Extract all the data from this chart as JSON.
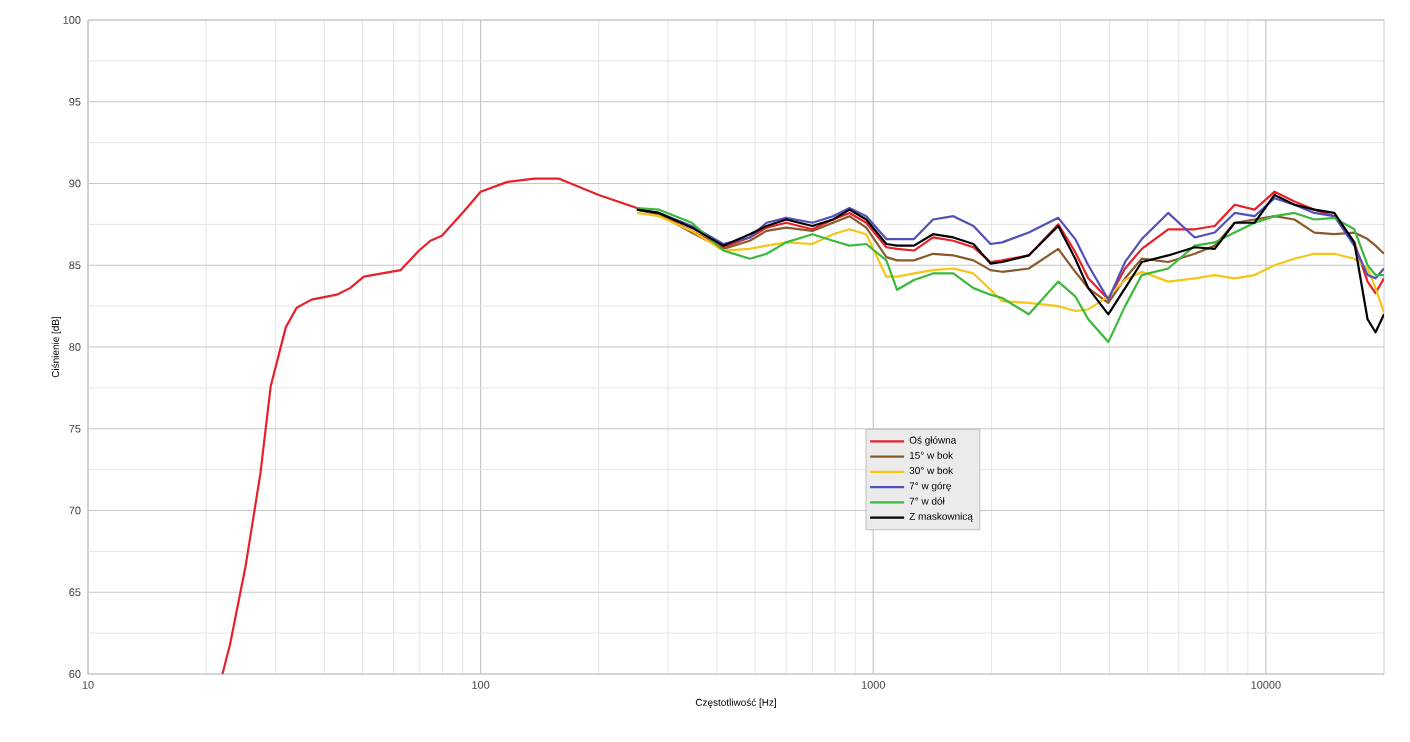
{
  "chart_data": {
    "type": "line",
    "xlabel": "Częstotliwość [Hz]",
    "ylabel": "Ciśnienie [dB]",
    "log": "x",
    "grid": true,
    "legend": "bottom",
    "xlim": [
      10,
      20000
    ],
    "xticks": [
      10,
      100,
      1000,
      10000
    ],
    "ylim": [
      60,
      100
    ],
    "yticks": [
      60,
      65,
      70,
      75,
      80,
      85,
      90,
      95,
      100
    ],
    "series": [
      {
        "name": "Oś główna",
        "color": "#e8202a",
        "x": [
          22,
          23,
          25.2,
          27.5,
          29.2,
          31.9,
          34,
          37.1,
          43,
          46.5,
          50.4,
          62.5,
          69.7,
          74.5,
          79.7,
          90.7,
          100,
          117,
          137,
          158,
          200,
          250,
          285,
          345,
          415,
          485,
          535,
          600,
          700,
          790,
          870,
          960,
          1080,
          1150,
          1270,
          1420,
          1600,
          1800,
          1990,
          2130,
          2490,
          2960,
          3270,
          3530,
          3970,
          4380,
          4830,
          5640,
          6590,
          7410,
          8330,
          9360,
          10520,
          11830,
          13290,
          14940,
          16800,
          18160,
          19030,
          20000
        ],
        "values": [
          60,
          61.8,
          66.6,
          72.3,
          77.6,
          81.2,
          82.4,
          82.9,
          83.2,
          83.6,
          84.3,
          84.7,
          85.9,
          86.5,
          86.8,
          88.3,
          89.5,
          90.1,
          90.3,
          90.3,
          89.3,
          88.5,
          88.1,
          87.1,
          86.1,
          86.7,
          87.3,
          87.6,
          87.2,
          87.8,
          88.2,
          87.6,
          86.1,
          86.0,
          85.9,
          86.7,
          86.5,
          86.1,
          85.2,
          85.3,
          85.6,
          87.5,
          85.8,
          84.2,
          82.9,
          84.8,
          86.0,
          87.2,
          87.2,
          87.4,
          88.7,
          88.4,
          89.5,
          88.9,
          88.4,
          88.0,
          86.4,
          84.0,
          83.3,
          84.2
        ]
      },
      {
        "name": "15° w bok",
        "color": "#8b5a2b",
        "x": [
          250,
          285,
          345,
          415,
          485,
          535,
          600,
          700,
          790,
          870,
          960,
          1080,
          1150,
          1270,
          1420,
          1600,
          1800,
          1990,
          2130,
          2490,
          2960,
          3270,
          3530,
          3970,
          4380,
          4830,
          5640,
          6590,
          7410,
          8330,
          9360,
          10520,
          11830,
          13290,
          14940,
          16800,
          18160,
          19030,
          20000
        ],
        "values": [
          88.4,
          88.1,
          87.0,
          86.0,
          86.5,
          87.1,
          87.3,
          87.1,
          87.6,
          88.0,
          87.3,
          85.5,
          85.3,
          85.3,
          85.7,
          85.6,
          85.3,
          84.7,
          84.6,
          84.8,
          86.0,
          84.6,
          83.6,
          82.7,
          84.2,
          85.4,
          85.2,
          85.7,
          86.2,
          87.6,
          87.8,
          88.0,
          87.8,
          87.0,
          86.9,
          87.0,
          86.6,
          86.2,
          85.7
        ]
      },
      {
        "name": "30° w bok",
        "color": "#f5c518",
        "x": [
          250,
          285,
          345,
          415,
          485,
          535,
          600,
          700,
          790,
          870,
          960,
          1080,
          1150,
          1270,
          1420,
          1600,
          1800,
          1990,
          2130,
          2490,
          2960,
          3270,
          3530,
          3970,
          4380,
          4830,
          5640,
          6590,
          7410,
          8330,
          9360,
          10520,
          11830,
          13290,
          14940,
          16800,
          18160,
          19030,
          20000
        ],
        "values": [
          88.2,
          88.0,
          87.1,
          85.9,
          86.0,
          86.2,
          86.4,
          86.3,
          86.9,
          87.2,
          86.9,
          84.3,
          84.3,
          84.5,
          84.7,
          84.8,
          84.5,
          83.5,
          82.8,
          82.7,
          82.5,
          82.2,
          82.3,
          83.1,
          84.1,
          84.6,
          84.0,
          84.2,
          84.4,
          84.2,
          84.4,
          85.0,
          85.4,
          85.7,
          85.7,
          85.4,
          84.8,
          83.6,
          82.1
        ]
      },
      {
        "name": "7° w górę",
        "color": "#5050b8",
        "x": [
          250,
          285,
          345,
          415,
          485,
          535,
          600,
          700,
          790,
          870,
          960,
          1080,
          1150,
          1270,
          1420,
          1600,
          1800,
          1990,
          2130,
          2490,
          2960,
          3270,
          3530,
          3970,
          4380,
          4830,
          5640,
          6590,
          7410,
          8330,
          9360,
          10520,
          11830,
          13290,
          14940,
          16800,
          18160,
          19030,
          20000
        ],
        "values": [
          88.4,
          88.2,
          87.4,
          86.3,
          86.7,
          87.6,
          87.9,
          87.6,
          88.0,
          88.5,
          88.0,
          86.6,
          86.6,
          86.6,
          87.8,
          88.0,
          87.4,
          86.3,
          86.4,
          87.0,
          87.9,
          86.6,
          85.0,
          82.9,
          85.2,
          86.6,
          88.2,
          86.7,
          87.0,
          88.2,
          88.0,
          89.1,
          88.7,
          88.2,
          88.0,
          86.2,
          84.4,
          84.2,
          84.8
        ]
      },
      {
        "name": "7° w dół",
        "color": "#3cb83c",
        "x": [
          250,
          285,
          345,
          415,
          485,
          535,
          600,
          700,
          790,
          870,
          960,
          1080,
          1150,
          1270,
          1420,
          1600,
          1800,
          1990,
          2130,
          2490,
          2960,
          3270,
          3530,
          3970,
          4380,
          4830,
          5640,
          6590,
          7410,
          8330,
          9360,
          10520,
          11830,
          13290,
          14940,
          16800,
          18160,
          19030,
          20000
        ],
        "values": [
          88.5,
          88.4,
          87.6,
          85.9,
          85.4,
          85.7,
          86.4,
          86.9,
          86.5,
          86.2,
          86.3,
          85.3,
          83.5,
          84.1,
          84.5,
          84.5,
          83.6,
          83.2,
          83.0,
          82.0,
          84.0,
          83.1,
          81.7,
          80.3,
          82.5,
          84.4,
          84.8,
          86.2,
          86.4,
          87.0,
          87.6,
          88.0,
          88.2,
          87.8,
          87.9,
          87.2,
          85.0,
          84.4,
          84.4
        ]
      },
      {
        "name": "Z maskownicą",
        "color": "#000000",
        "x": [
          250,
          285,
          345,
          415,
          485,
          535,
          600,
          700,
          790,
          870,
          960,
          1080,
          1150,
          1270,
          1420,
          1600,
          1800,
          1990,
          2130,
          2490,
          2960,
          3270,
          3530,
          3970,
          4380,
          4830,
          5640,
          6590,
          7410,
          8330,
          9360,
          10520,
          11830,
          13290,
          14940,
          16800,
          18160,
          19030,
          20000
        ],
        "values": [
          88.4,
          88.2,
          87.3,
          86.2,
          86.9,
          87.4,
          87.8,
          87.4,
          87.8,
          88.4,
          87.8,
          86.3,
          86.2,
          86.2,
          86.9,
          86.7,
          86.3,
          85.1,
          85.2,
          85.6,
          87.4,
          85.4,
          83.6,
          82.0,
          83.6,
          85.2,
          85.6,
          86.1,
          86.0,
          87.6,
          87.6,
          89.3,
          88.7,
          88.4,
          88.2,
          86.4,
          81.7,
          80.9,
          82.0
        ]
      }
    ]
  }
}
